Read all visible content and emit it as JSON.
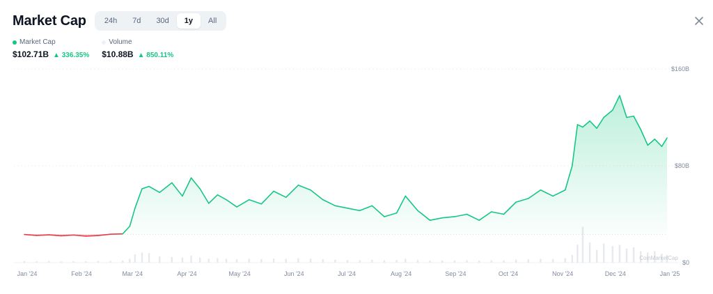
{
  "header": {
    "title": "Market Cap"
  },
  "tabs": [
    {
      "label": "24h",
      "active": false
    },
    {
      "label": "7d",
      "active": false
    },
    {
      "label": "30d",
      "active": false
    },
    {
      "label": "1y",
      "active": true
    },
    {
      "label": "All",
      "active": false
    }
  ],
  "stats": {
    "market_cap": {
      "label": "Market Cap",
      "value": "$102.71B",
      "change": "336.35%",
      "dot_color": "#16c784"
    },
    "volume": {
      "label": "Volume",
      "value": "$10.88B",
      "change": "850.11%",
      "dot_color": "#eff2f5"
    }
  },
  "colors": {
    "up": "#16c784",
    "down": "#ea3943",
    "grid": "#eff2f5",
    "axis_text": "#808a9d",
    "volume_bar": "#e6e9ee"
  },
  "watermark": "CoinMarketCap",
  "chart_data": {
    "type": "area",
    "x_tick_labels": [
      "Jan '24",
      "Feb '24",
      "Mar '24",
      "Apr '24",
      "May '24",
      "Jun '24",
      "Jul '24",
      "Aug '24",
      "Sep '24",
      "Oct '24",
      "Nov '24",
      "Dec '24",
      "Jan '25"
    ],
    "y_tick_labels": [
      "$160B",
      "$80B",
      "$0"
    ],
    "ylim": [
      0,
      160
    ],
    "y_unit": "B USD",
    "grid": true,
    "series": [
      {
        "name": "Market Cap",
        "x": [
          "2024-01-01",
          "2024-01-08",
          "2024-01-15",
          "2024-01-22",
          "2024-01-29",
          "2024-02-05",
          "2024-02-12",
          "2024-02-19",
          "2024-02-26",
          "2024-03-01",
          "2024-03-04",
          "2024-03-08",
          "2024-03-12",
          "2024-03-18",
          "2024-03-25",
          "2024-03-31",
          "2024-04-05",
          "2024-04-10",
          "2024-04-15",
          "2024-04-20",
          "2024-04-25",
          "2024-05-01",
          "2024-05-08",
          "2024-05-15",
          "2024-05-22",
          "2024-05-29",
          "2024-06-05",
          "2024-06-12",
          "2024-06-19",
          "2024-06-26",
          "2024-07-03",
          "2024-07-10",
          "2024-07-17",
          "2024-07-24",
          "2024-07-31",
          "2024-08-05",
          "2024-08-12",
          "2024-08-19",
          "2024-08-26",
          "2024-09-02",
          "2024-09-09",
          "2024-09-16",
          "2024-09-23",
          "2024-09-30",
          "2024-10-07",
          "2024-10-14",
          "2024-10-21",
          "2024-10-28",
          "2024-11-04",
          "2024-11-08",
          "2024-11-11",
          "2024-11-14",
          "2024-11-18",
          "2024-11-22",
          "2024-11-26",
          "2024-12-01",
          "2024-12-05",
          "2024-12-09",
          "2024-12-13",
          "2024-12-17",
          "2024-12-21",
          "2024-12-25",
          "2024-12-29",
          "2025-01-01"
        ],
        "values": [
          23.3,
          22.5,
          23.0,
          22.2,
          22.8,
          21.9,
          22.4,
          23.5,
          23.8,
          30.0,
          45.0,
          61.0,
          63.0,
          58.0,
          66.0,
          55.0,
          70.0,
          61.0,
          49.0,
          56.0,
          52.0,
          46.0,
          52.0,
          48.5,
          59.0,
          54.0,
          64.0,
          60.0,
          52.0,
          47.0,
          45.0,
          43.0,
          47.0,
          38.0,
          41.0,
          55.0,
          43.0,
          35.0,
          37.0,
          38.0,
          40.0,
          35.0,
          42.0,
          40.0,
          50.0,
          53.0,
          60.0,
          55.0,
          60.0,
          80.0,
          114.0,
          112.0,
          117.0,
          111.0,
          120.0,
          126.0,
          138.0,
          120.0,
          121.0,
          110.0,
          97.0,
          102.0,
          96.0,
          103.0
        ],
        "color_up": "#16c784",
        "color_down": "#ea3943",
        "baseline": 23.4
      }
    ],
    "volume": {
      "values": [
        1.2,
        1.1,
        1.3,
        1.0,
        1.2,
        1.1,
        1.3,
        1.4,
        1.6,
        3.0,
        6.5,
        8.0,
        7.5,
        5.0,
        4.5,
        4.0,
        5.5,
        4.0,
        3.2,
        3.5,
        3.0,
        2.6,
        3.0,
        2.7,
        3.2,
        3.0,
        3.4,
        3.1,
        2.6,
        2.3,
        2.1,
        2.0,
        2.2,
        1.8,
        2.0,
        3.0,
        2.0,
        1.6,
        1.7,
        1.7,
        1.9,
        1.6,
        1.9,
        1.8,
        2.4,
        2.6,
        3.0,
        2.8,
        3.5,
        6.0,
        14.0,
        28.0,
        16.0,
        10.0,
        15.0,
        13.0,
        14.0,
        11.0,
        12.0,
        9.0,
        8.0,
        9.0,
        7.0,
        6.0
      ]
    }
  }
}
